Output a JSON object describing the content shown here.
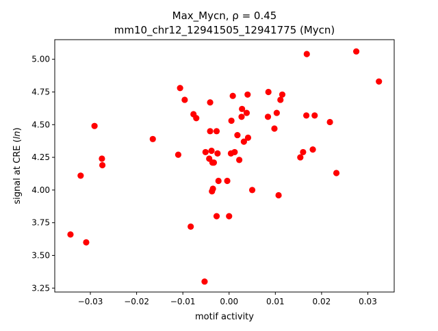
{
  "chart_data": {
    "type": "scatter",
    "title_line1": "Max_Mycn, ρ = 0.45",
    "title_line2": "mm10_chr12_12941505_12941775 (Mycn)",
    "xlabel": "motif activity",
    "ylabel_prefix": "signal at CRE (",
    "ylabel_italic": "ln",
    "ylabel_suffix": ")",
    "xlim": [
      -0.0377,
      0.0357
    ],
    "ylim": [
      3.22,
      5.15
    ],
    "x_ticks": [
      -0.03,
      -0.02,
      -0.01,
      0.0,
      0.01,
      0.02,
      0.03
    ],
    "x_tick_labels": [
      "−0.03",
      "−0.02",
      "−0.01",
      "0.00",
      "0.01",
      "0.02",
      "0.03"
    ],
    "y_ticks": [
      3.25,
      3.5,
      3.75,
      4.0,
      4.25,
      4.5,
      4.75,
      5.0
    ],
    "y_tick_labels": [
      "3.25",
      "3.50",
      "3.75",
      "4.00",
      "4.25",
      "4.50",
      "4.75",
      "5.00"
    ],
    "marker_color": "#ff0000",
    "grid": false,
    "legend": "none",
    "points": [
      {
        "x": -0.0343,
        "y": 3.66
      },
      {
        "x": -0.0321,
        "y": 4.11
      },
      {
        "x": -0.0309,
        "y": 3.6
      },
      {
        "x": -0.0291,
        "y": 4.49
      },
      {
        "x": -0.0275,
        "y": 4.24
      },
      {
        "x": -0.0274,
        "y": 4.19
      },
      {
        "x": -0.0165,
        "y": 4.39
      },
      {
        "x": -0.011,
        "y": 4.27
      },
      {
        "x": -0.0106,
        "y": 4.78
      },
      {
        "x": -0.0096,
        "y": 4.69
      },
      {
        "x": -0.0083,
        "y": 3.72
      },
      {
        "x": -0.0077,
        "y": 4.58
      },
      {
        "x": -0.0071,
        "y": 4.55
      },
      {
        "x": -0.0053,
        "y": 3.3
      },
      {
        "x": -0.0051,
        "y": 4.29
      },
      {
        "x": -0.0043,
        "y": 4.24
      },
      {
        "x": -0.0041,
        "y": 4.67
      },
      {
        "x": -0.0041,
        "y": 4.45
      },
      {
        "x": -0.0038,
        "y": 4.3
      },
      {
        "x": -0.0037,
        "y": 3.99
      },
      {
        "x": -0.0036,
        "y": 4.21
      },
      {
        "x": -0.0035,
        "y": 4.01
      },
      {
        "x": -0.0033,
        "y": 4.21
      },
      {
        "x": -0.0027,
        "y": 4.45
      },
      {
        "x": -0.0027,
        "y": 3.8
      },
      {
        "x": -0.0025,
        "y": 4.28
      },
      {
        "x": -0.0023,
        "y": 4.07
      },
      {
        "x": -0.0004,
        "y": 4.07
      },
      {
        "x": 0.0,
        "y": 3.8
      },
      {
        "x": 0.0004,
        "y": 4.28
      },
      {
        "x": 0.0005,
        "y": 4.53
      },
      {
        "x": 0.0008,
        "y": 4.72
      },
      {
        "x": 0.0012,
        "y": 4.29
      },
      {
        "x": 0.0018,
        "y": 4.42
      },
      {
        "x": 0.0022,
        "y": 4.23
      },
      {
        "x": 0.0027,
        "y": 4.56
      },
      {
        "x": 0.0028,
        "y": 4.62
      },
      {
        "x": 0.0032,
        "y": 4.37
      },
      {
        "x": 0.0038,
        "y": 4.59
      },
      {
        "x": 0.004,
        "y": 4.73
      },
      {
        "x": 0.0041,
        "y": 4.4
      },
      {
        "x": 0.005,
        "y": 4.0
      },
      {
        "x": 0.0084,
        "y": 4.56
      },
      {
        "x": 0.0085,
        "y": 4.75
      },
      {
        "x": 0.0098,
        "y": 4.47
      },
      {
        "x": 0.0103,
        "y": 4.59
      },
      {
        "x": 0.0107,
        "y": 3.96
      },
      {
        "x": 0.0111,
        "y": 4.69
      },
      {
        "x": 0.0115,
        "y": 4.73
      },
      {
        "x": 0.0154,
        "y": 4.25
      },
      {
        "x": 0.016,
        "y": 4.29
      },
      {
        "x": 0.0167,
        "y": 4.57
      },
      {
        "x": 0.0168,
        "y": 5.04
      },
      {
        "x": 0.0181,
        "y": 4.31
      },
      {
        "x": 0.0185,
        "y": 4.57
      },
      {
        "x": 0.0218,
        "y": 4.52
      },
      {
        "x": 0.0232,
        "y": 4.13
      },
      {
        "x": 0.0275,
        "y": 5.06
      },
      {
        "x": 0.0324,
        "y": 4.83
      }
    ]
  }
}
